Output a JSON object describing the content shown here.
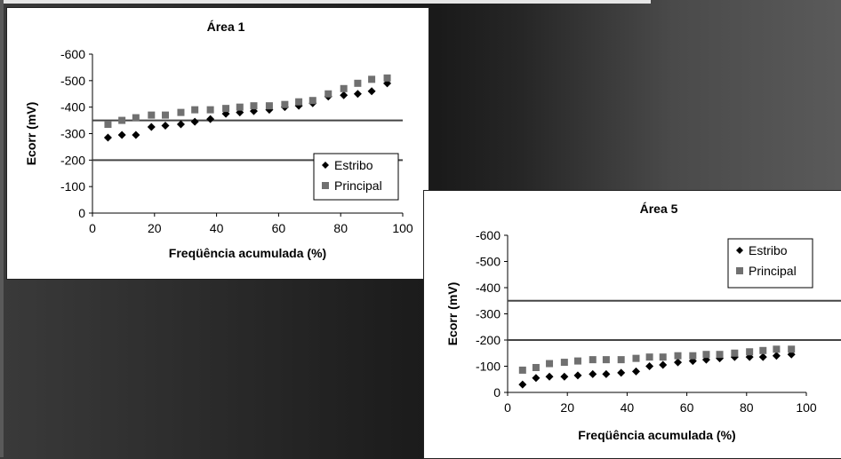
{
  "chart_data": [
    {
      "type": "scatter",
      "title": "Área 1",
      "xlabel": "Freqüência acumulada (%)",
      "ylabel": "Ecorr (mV)",
      "xlim": [
        0,
        100
      ],
      "ylim": [
        0,
        -600
      ],
      "xticks": [
        "0",
        "20",
        "40",
        "60",
        "80",
        "100"
      ],
      "yticks": [
        "-600",
        "-500",
        "-400",
        "-300",
        "-200",
        "-100",
        "0"
      ],
      "reference_lines_y": [
        -350,
        -200
      ],
      "legend": {
        "placement": "bottom-right",
        "entries": [
          "Estribo",
          "Principal"
        ]
      },
      "series": [
        {
          "name": "Estribo",
          "marker": "diamond",
          "color": "#000000",
          "x": [
            5,
            9.5,
            14,
            19,
            23.5,
            28.5,
            33,
            38,
            43,
            47.5,
            52,
            57,
            62,
            66.5,
            71,
            76,
            81,
            85.5,
            90,
            95
          ],
          "y": [
            -285,
            -295,
            -295,
            -325,
            -330,
            -335,
            -345,
            -355,
            -375,
            -380,
            -385,
            -390,
            -400,
            -405,
            -415,
            -440,
            -445,
            -450,
            -460,
            -490
          ]
        },
        {
          "name": "Principal",
          "marker": "square",
          "color": "#707070",
          "x": [
            5,
            9.5,
            14,
            19,
            23.5,
            28.5,
            33,
            38,
            43,
            47.5,
            52,
            57,
            62,
            66.5,
            71,
            76,
            81,
            85.5,
            90,
            95
          ],
          "y": [
            -335,
            -350,
            -360,
            -370,
            -370,
            -380,
            -390,
            -390,
            -395,
            -400,
            -405,
            -405,
            -410,
            -420,
            -425,
            -450,
            -470,
            -490,
            -505,
            -510
          ]
        }
      ]
    },
    {
      "type": "scatter",
      "title": "Área 5",
      "xlabel": "Freqüência acumulada (%)",
      "ylabel": "Ecorr (mV)",
      "xlim": [
        0,
        100
      ],
      "ylim": [
        0,
        -600
      ],
      "xticks": [
        "0",
        "20",
        "40",
        "60",
        "80",
        "100"
      ],
      "yticks": [
        "-600",
        "-500",
        "-400",
        "-300",
        "-200",
        "-100",
        "0"
      ],
      "reference_lines_y": [
        -350,
        -200
      ],
      "legend": {
        "placement": "top-right",
        "entries": [
          "Estribo",
          "Principal"
        ]
      },
      "series": [
        {
          "name": "Estribo",
          "marker": "diamond",
          "color": "#000000",
          "x": [
            5,
            9.5,
            14,
            19,
            23.5,
            28.5,
            33,
            38,
            43,
            47.5,
            52,
            57,
            62,
            66.5,
            71,
            76,
            81,
            85.5,
            90,
            95
          ],
          "y": [
            -30,
            -55,
            -60,
            -60,
            -65,
            -70,
            -70,
            -75,
            -80,
            -100,
            -105,
            -115,
            -120,
            -125,
            -130,
            -135,
            -135,
            -135,
            -140,
            -145
          ]
        },
        {
          "name": "Principal",
          "marker": "square",
          "color": "#707070",
          "x": [
            5,
            9.5,
            14,
            19,
            23.5,
            28.5,
            33,
            38,
            43,
            47.5,
            52,
            57,
            62,
            66.5,
            71,
            76,
            81,
            85.5,
            90,
            95
          ],
          "y": [
            -85,
            -95,
            -110,
            -115,
            -120,
            -125,
            -125,
            -125,
            -130,
            -135,
            -135,
            -140,
            -140,
            -145,
            -145,
            -150,
            -155,
            -160,
            -165,
            -165
          ]
        }
      ]
    }
  ]
}
